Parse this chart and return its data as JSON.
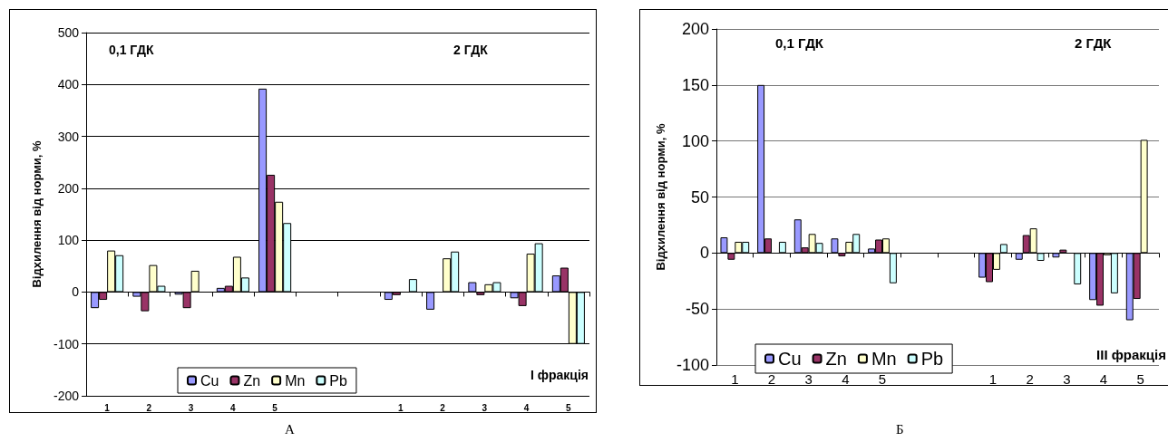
{
  "chart_data": [
    {
      "type": "bar",
      "ylabel": "Відхилення від норми, %",
      "categories": [
        "1",
        "2",
        "3",
        "4",
        "5",
        null,
        null,
        "1",
        "2",
        "3",
        "4",
        "5"
      ],
      "series": [
        {
          "name": "Cu",
          "color": "#9999ff",
          "values": [
            -31,
            -9,
            -5,
            8,
            392,
            null,
            null,
            -15,
            -34,
            19,
            -12,
            32
          ]
        },
        {
          "name": "Zn",
          "color": "#993366",
          "values": [
            -15,
            -37,
            -31,
            12,
            226,
            null,
            null,
            -6,
            null,
            -6,
            -27,
            47
          ]
        },
        {
          "name": "Mn",
          "color": "#ffffcc",
          "values": [
            80,
            52,
            41,
            68,
            174,
            null,
            null,
            null,
            65,
            15,
            74,
            -100
          ]
        },
        {
          "name": "Pb",
          "color": "#ccffff",
          "values": [
            71,
            12,
            null,
            28,
            133,
            null,
            null,
            25,
            78,
            19,
            94,
            -100
          ]
        }
      ],
      "ylim": [
        -200,
        500
      ],
      "yticks": [
        -200,
        -100,
        0,
        100,
        200,
        300,
        400,
        500
      ],
      "grid": "y",
      "legend": "bottom",
      "annotations": [
        "0,1 ГДК",
        "2 ГДК",
        "І фракція",
        "А"
      ]
    },
    {
      "type": "bar",
      "ylabel": "Відхилення від норми, %",
      "categories": [
        "1",
        "2",
        "3",
        "4",
        "5",
        null,
        null,
        "1",
        "2",
        "3",
        "4",
        "5"
      ],
      "series": [
        {
          "name": "Cu",
          "color": "#9999ff",
          "values": [
            14,
            150,
            30,
            13,
            4,
            null,
            null,
            -22,
            -6,
            -4,
            -42,
            -60
          ]
        },
        {
          "name": "Zn",
          "color": "#993366",
          "values": [
            -6,
            13,
            5,
            -3,
            12,
            null,
            null,
            -26,
            16,
            3,
            -47,
            -41
          ]
        },
        {
          "name": "Mn",
          "color": "#ffffcc",
          "values": [
            10,
            null,
            17,
            10,
            13,
            null,
            null,
            -15,
            22,
            null,
            -2,
            101
          ]
        },
        {
          "name": "Pb",
          "color": "#ccffff",
          "values": [
            10,
            10,
            9,
            17,
            -27,
            null,
            null,
            8,
            -7,
            -28,
            -36,
            null
          ]
        }
      ],
      "ylim": [
        -100,
        200
      ],
      "yticks": [
        -100,
        -50,
        0,
        50,
        100,
        150,
        200
      ],
      "grid": "y",
      "legend": "bottom",
      "annotations": [
        "0,1 ГДК",
        "2 ГДК",
        "ІІІ фракція",
        "Б"
      ]
    }
  ]
}
